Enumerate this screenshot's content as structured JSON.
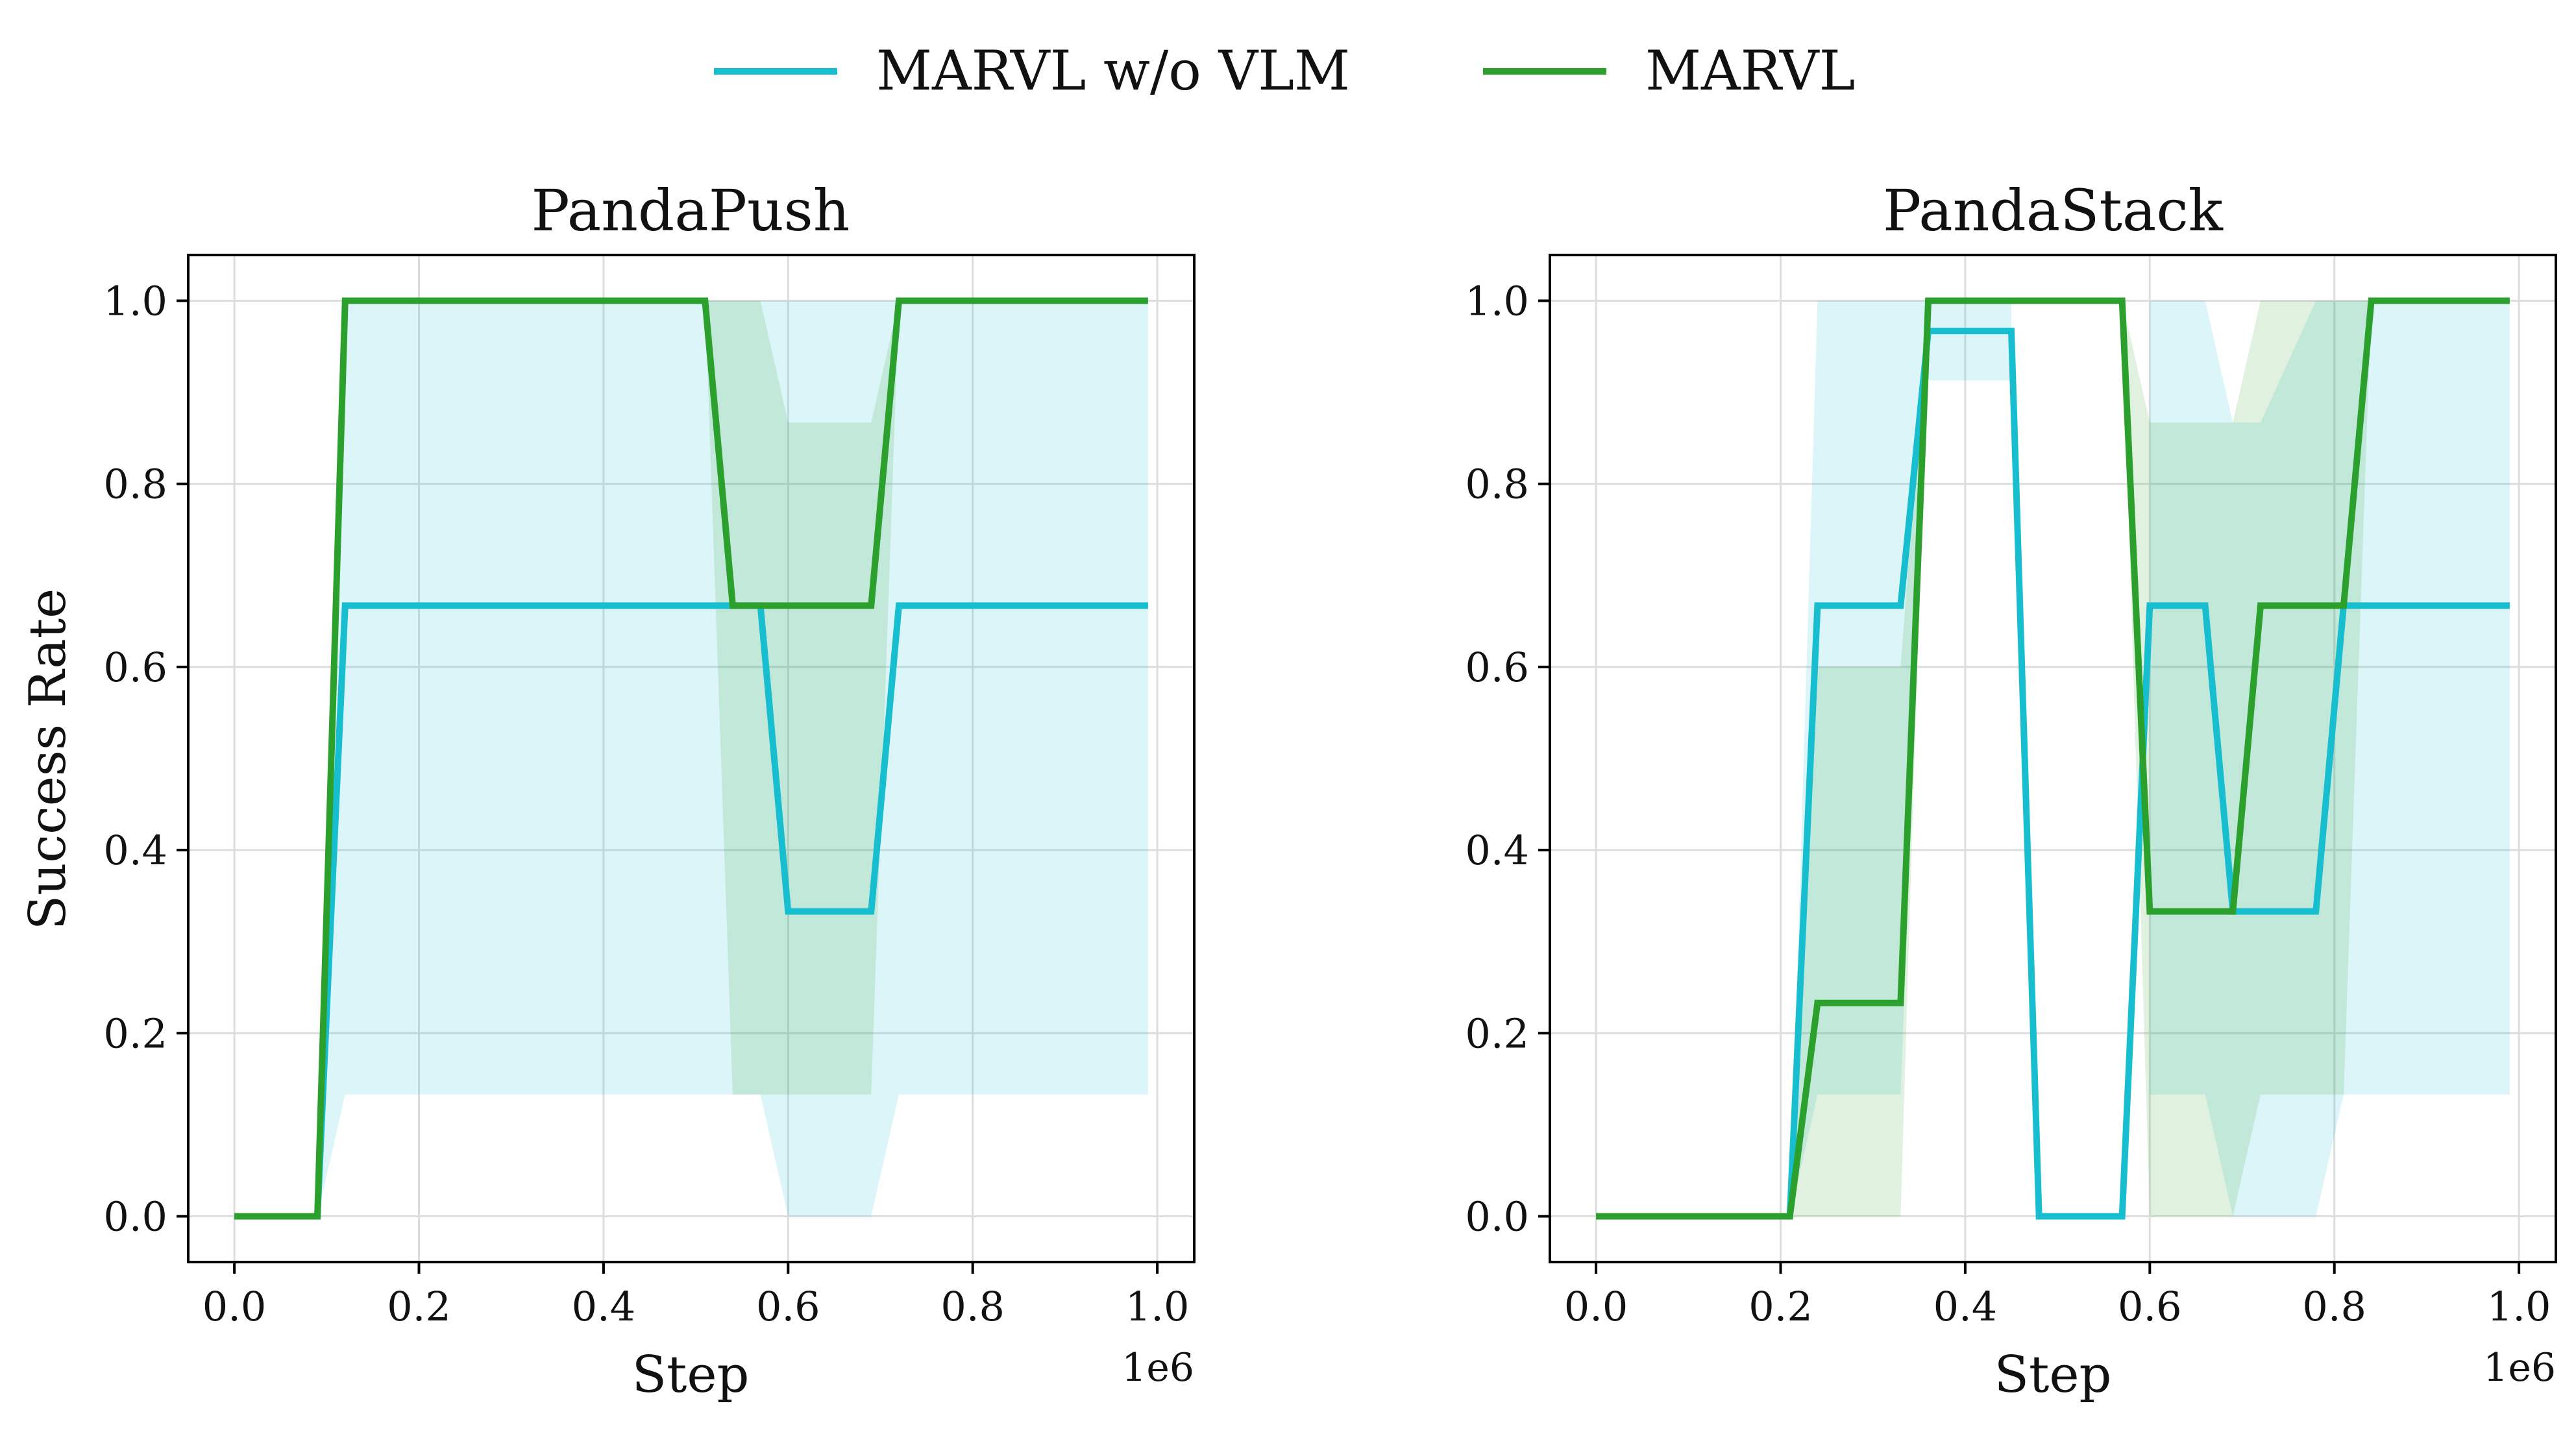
{
  "legend": [
    {
      "label": "MARVL w/o VLM",
      "color": "#17becf"
    },
    {
      "label": "MARVL",
      "color": "#2ca02c"
    }
  ],
  "shared_ylabel": "Success Rate",
  "chart_data": [
    {
      "type": "line",
      "title": "PandaPush",
      "xlabel": "Step",
      "ylabel": "Success Rate",
      "x_offset_label": "1e6",
      "xlim": [
        -0.05,
        1.04
      ],
      "ylim": [
        -0.05,
        1.05
      ],
      "xticks": [
        0.0,
        0.2,
        0.4,
        0.6,
        0.8,
        1.0
      ],
      "xtick_labels": [
        "0.0",
        "0.2",
        "0.4",
        "0.6",
        "0.8",
        "1.0"
      ],
      "yticks": [
        0.0,
        0.2,
        0.4,
        0.6,
        0.8,
        1.0
      ],
      "ytick_labels": [
        "0.0",
        "0.2",
        "0.4",
        "0.6",
        "0.8",
        "1.0"
      ],
      "grid": true,
      "series": [
        {
          "name": "MARVL w/o VLM",
          "color": "#17becf",
          "x": [
            0.0,
            0.09,
            0.12,
            0.57,
            0.6,
            0.69,
            0.72,
            0.99
          ],
          "y": [
            0.0,
            0.0,
            0.667,
            0.667,
            0.333,
            0.333,
            0.667,
            0.667
          ],
          "band_x": [
            0.0,
            0.09,
            0.12,
            0.57,
            0.6,
            0.69,
            0.72,
            0.99
          ],
          "band_low": [
            0.0,
            0.0,
            0.133,
            0.133,
            0.0,
            0.0,
            0.133,
            0.133
          ],
          "band_high": [
            0.0,
            0.0,
            1.0,
            1.0,
            1.0,
            1.0,
            1.0,
            1.0
          ]
        },
        {
          "name": "MARVL",
          "color": "#2ca02c",
          "x": [
            0.0,
            0.09,
            0.12,
            0.51,
            0.54,
            0.69,
            0.72,
            0.99
          ],
          "y": [
            0.0,
            0.0,
            1.0,
            1.0,
            0.667,
            0.667,
            1.0,
            1.0
          ],
          "band_x": [
            0.0,
            0.09,
            0.12,
            0.51,
            0.54,
            0.57,
            0.6,
            0.69,
            0.72,
            0.99
          ],
          "band_low": [
            0.0,
            0.0,
            1.0,
            1.0,
            0.133,
            0.133,
            0.133,
            0.133,
            1.0,
            1.0
          ],
          "band_high": [
            0.0,
            0.0,
            1.0,
            1.0,
            1.0,
            1.0,
            0.867,
            0.867,
            1.0,
            1.0
          ]
        }
      ]
    },
    {
      "type": "line",
      "title": "PandaStack",
      "xlabel": "Step",
      "ylabel": "",
      "x_offset_label": "1e6",
      "xlim": [
        -0.05,
        1.04
      ],
      "ylim": [
        -0.05,
        1.05
      ],
      "xticks": [
        0.0,
        0.2,
        0.4,
        0.6,
        0.8,
        1.0
      ],
      "xtick_labels": [
        "0.0",
        "0.2",
        "0.4",
        "0.6",
        "0.8",
        "1.0"
      ],
      "yticks": [
        0.0,
        0.2,
        0.4,
        0.6,
        0.8,
        1.0
      ],
      "ytick_labels": [
        "0.0",
        "0.2",
        "0.4",
        "0.6",
        "0.8",
        "1.0"
      ],
      "grid": true,
      "series": [
        {
          "name": "MARVL w/o VLM",
          "color": "#17becf",
          "x": [
            0.0,
            0.21,
            0.24,
            0.33,
            0.36,
            0.45,
            0.48,
            0.57,
            0.6,
            0.66,
            0.69,
            0.78,
            0.81,
            0.99
          ],
          "y": [
            0.0,
            0.0,
            0.667,
            0.667,
            0.967,
            0.967,
            0.0,
            0.0,
            0.667,
            0.667,
            0.333,
            0.333,
            0.667,
            0.667
          ],
          "band_x": [
            0.0,
            0.21,
            0.24,
            0.33,
            0.36,
            0.45,
            0.45,
            0.6,
            0.66,
            0.69,
            0.72,
            0.78,
            0.81,
            0.99
          ],
          "band_low": [
            0.0,
            0.0,
            0.133,
            0.133,
            0.913,
            0.913,
            null,
            0.133,
            0.133,
            0.0,
            0.0,
            0.0,
            0.133,
            0.133
          ],
          "band_high": [
            0.0,
            0.0,
            1.0,
            1.0,
            1.0,
            1.0,
            null,
            1.0,
            1.0,
            0.867,
            0.867,
            1.0,
            1.0,
            1.0
          ]
        },
        {
          "name": "MARVL",
          "color": "#2ca02c",
          "x": [
            0.0,
            0.21,
            0.24,
            0.33,
            0.36,
            0.57,
            0.6,
            0.69,
            0.72,
            0.81,
            0.84,
            0.99
          ],
          "y": [
            0.0,
            0.0,
            0.233,
            0.233,
            1.0,
            1.0,
            0.333,
            0.333,
            0.667,
            0.667,
            1.0,
            1.0
          ],
          "band_x": [
            0.0,
            0.21,
            0.24,
            0.33,
            0.36,
            0.57,
            0.6,
            0.69,
            0.72,
            0.81,
            0.84,
            0.99
          ],
          "band_low": [
            0.0,
            0.0,
            0.0,
            0.0,
            1.0,
            1.0,
            0.0,
            0.0,
            0.133,
            0.133,
            1.0,
            1.0
          ],
          "band_high": [
            0.0,
            0.0,
            0.6,
            0.6,
            1.0,
            1.0,
            0.867,
            0.867,
            1.0,
            1.0,
            1.0,
            1.0
          ]
        }
      ]
    }
  ]
}
